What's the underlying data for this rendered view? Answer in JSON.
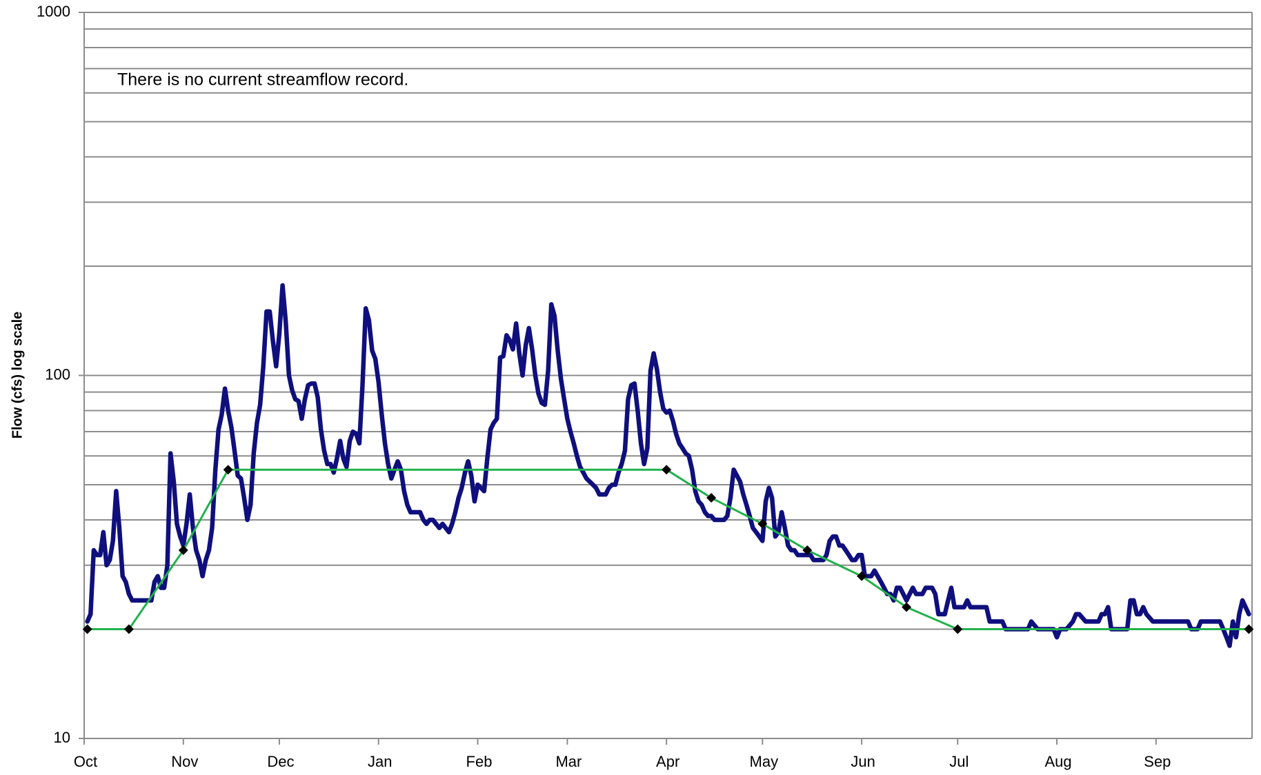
{
  "chart_data": {
    "type": "line",
    "ylabel": "Flow (cfs) log scale",
    "annotation": "There is no current streamflow record.",
    "yscale": "log",
    "ylim": [
      10,
      1000
    ],
    "yticks": [
      10,
      100,
      1000
    ],
    "minor_gridlines": [
      20,
      30,
      40,
      50,
      60,
      70,
      80,
      90,
      200,
      300,
      400,
      500,
      600,
      700,
      800,
      900
    ],
    "grid": true,
    "xlim": [
      0,
      365
    ],
    "xticks": [
      {
        "value": 0,
        "label": "Oct"
      },
      {
        "value": 31,
        "label": "Nov"
      },
      {
        "value": 61,
        "label": "Dec"
      },
      {
        "value": 92,
        "label": "Jan"
      },
      {
        "value": 123,
        "label": "Feb"
      },
      {
        "value": 151,
        "label": "Mar"
      },
      {
        "value": 182,
        "label": "Apr"
      },
      {
        "value": 212,
        "label": "May"
      },
      {
        "value": 243,
        "label": "Jun"
      },
      {
        "value": 273,
        "label": "Jul"
      },
      {
        "value": 304,
        "label": "Aug"
      },
      {
        "value": 335,
        "label": "Sep"
      }
    ],
    "series": [
      {
        "color": "#0f0f7d",
        "markers": false,
        "x": [
          1,
          2,
          3,
          4,
          5,
          6,
          7,
          8,
          9,
          10,
          11,
          12,
          13,
          14,
          15,
          17,
          20,
          21,
          22,
          23,
          24,
          25,
          26,
          27,
          28,
          29,
          30,
          31,
          32,
          33,
          34,
          35,
          36,
          37,
          38,
          39,
          40,
          41,
          42,
          43,
          44,
          45,
          46,
          47,
          48,
          49,
          50,
          51,
          52,
          53,
          54,
          55,
          56,
          57,
          58,
          59,
          60,
          61,
          62,
          63,
          64,
          65,
          66,
          67,
          68,
          69,
          70,
          71,
          72,
          73,
          74,
          75,
          76,
          77,
          78,
          79,
          80,
          81,
          82,
          83,
          84,
          85,
          86,
          87,
          88,
          89,
          90,
          91,
          92,
          93,
          94,
          95,
          96,
          97,
          98,
          99,
          100,
          101,
          102,
          104,
          105,
          106,
          107,
          108,
          109,
          110,
          111,
          112,
          113,
          114,
          115,
          116,
          117,
          118,
          119,
          120,
          121,
          122,
          123,
          124,
          125,
          126,
          127,
          128,
          129,
          130,
          131,
          132,
          133,
          134,
          135,
          136,
          137,
          138,
          139,
          140,
          141,
          142,
          143,
          144,
          145,
          146,
          147,
          148,
          149,
          150,
          151,
          152,
          153,
          154,
          155,
          156,
          157,
          158,
          159,
          160,
          161,
          162,
          163,
          164,
          165,
          166,
          167,
          168,
          169,
          170,
          171,
          172,
          173,
          174,
          175,
          176,
          177,
          178,
          179,
          180,
          181,
          182,
          183,
          184,
          185,
          186,
          187,
          188,
          189,
          190,
          191,
          192,
          193,
          194,
          195,
          196,
          197,
          198,
          199,
          200,
          201,
          202,
          203,
          204,
          205,
          206,
          207,
          208,
          209,
          210,
          211,
          212,
          213,
          214,
          215,
          216,
          217,
          218,
          219,
          220,
          221,
          222,
          223,
          224,
          226,
          227,
          228,
          229,
          231,
          232,
          233,
          234,
          235,
          236,
          237,
          238,
          239,
          240,
          241,
          242,
          243,
          244,
          245,
          246,
          247,
          248,
          249,
          250,
          251,
          252,
          253,
          254,
          255,
          256,
          257,
          258,
          259,
          260,
          261,
          262,
          263,
          265,
          266,
          267,
          268,
          269,
          270,
          271,
          272,
          274,
          275,
          276,
          277,
          278,
          280,
          282,
          283,
          285,
          287,
          288,
          290,
          293,
          295,
          296,
          298,
          300,
          303,
          304,
          305,
          307,
          309,
          310,
          311,
          313,
          314,
          317,
          318,
          319,
          320,
          321,
          323,
          325,
          326,
          327,
          328,
          329,
          330,
          331,
          332,
          334,
          338,
          343,
          345,
          346,
          348,
          349,
          350,
          353,
          355,
          356,
          357,
          358,
          359,
          360,
          361,
          362,
          363,
          364
        ],
        "values": [
          21,
          22,
          33,
          32,
          32,
          37,
          30,
          31,
          35,
          48,
          38,
          28,
          27,
          25,
          24,
          24,
          24,
          24,
          27,
          28,
          26,
          26,
          30,
          61,
          51,
          39,
          36,
          34,
          39,
          47,
          38,
          33,
          31,
          28,
          31,
          33,
          38,
          55,
          71,
          78,
          92,
          80,
          72,
          62,
          53,
          52,
          46,
          40,
          44,
          61,
          74,
          83,
          106,
          150,
          150,
          124,
          106,
          130,
          177,
          141,
          100,
          91,
          86,
          85,
          76,
          86,
          94,
          95,
          95,
          87,
          71,
          62,
          57,
          57,
          54,
          59,
          66,
          59,
          56,
          66,
          70,
          69,
          65,
          94,
          153,
          142,
          117,
          111,
          96,
          78,
          65,
          57,
          52,
          55,
          58,
          55,
          48,
          44,
          42,
          42,
          42,
          40,
          39,
          40,
          40,
          39,
          38,
          39,
          38,
          37,
          39,
          42,
          46,
          49,
          54,
          58,
          53,
          45,
          50,
          49,
          48,
          59,
          71,
          74,
          76,
          112,
          113,
          129,
          125,
          118,
          139,
          115,
          100,
          121,
          135,
          118,
          100,
          89,
          84,
          83,
          103,
          157,
          146,
          117,
          98,
          86,
          76,
          70,
          65,
          60,
          56,
          54,
          52,
          51,
          50,
          49,
          47,
          47,
          47,
          49,
          50,
          50,
          54,
          57,
          62,
          86,
          94,
          95,
          80,
          65,
          57,
          63,
          103,
          115,
          104,
          90,
          81,
          79,
          80,
          75,
          69,
          65,
          63,
          61,
          60,
          55,
          48,
          45,
          44,
          42,
          41,
          41,
          40,
          40,
          40,
          40,
          41,
          46,
          55,
          53,
          51,
          47,
          44,
          41,
          38,
          37,
          36,
          35,
          45,
          49,
          46,
          36,
          37,
          42,
          38,
          34,
          33,
          33,
          32,
          32,
          32,
          32,
          31,
          31,
          31,
          32,
          35,
          36,
          36,
          34,
          34,
          33,
          32,
          31,
          31,
          32,
          32,
          28,
          28,
          28,
          29,
          28,
          27,
          26,
          25,
          25,
          24,
          26,
          26,
          25,
          24,
          25,
          26,
          25,
          25,
          25,
          26,
          26,
          25,
          22,
          22,
          22,
          24,
          26,
          23,
          23,
          23,
          24,
          23,
          23,
          23,
          23,
          21,
          21,
          21,
          20,
          20,
          20,
          20,
          21,
          20,
          20,
          20,
          19,
          20,
          20,
          21,
          22,
          22,
          21,
          21,
          21,
          22,
          22,
          23,
          20,
          20,
          20,
          20,
          24,
          24,
          22,
          22,
          23,
          22,
          21,
          21,
          21,
          21,
          20,
          20,
          21,
          21,
          21,
          21,
          20,
          19,
          18,
          21,
          19,
          22,
          24,
          23,
          22
        ]
      },
      {
        "color": "#22b14c",
        "markers": true,
        "marker_color": "#000000",
        "x": [
          1,
          14,
          31,
          45,
          182,
          196,
          212,
          226,
          243,
          257,
          273,
          364
        ],
        "values": [
          20,
          20,
          33,
          55,
          55,
          46,
          39,
          33,
          28,
          23,
          20,
          20
        ]
      }
    ]
  }
}
